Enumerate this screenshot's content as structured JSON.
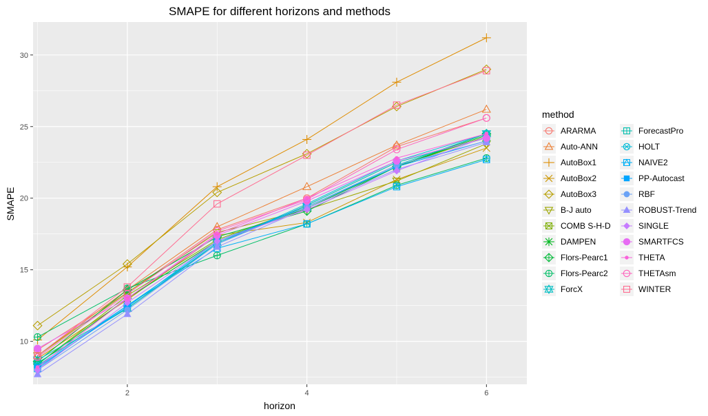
{
  "chart_data": {
    "type": "line",
    "title": "SMAPE for different horizons and methods",
    "xlabel": "horizon",
    "ylabel": "SMAPE",
    "xlim": [
      0.95,
      6.45
    ],
    "ylim": [
      7.0,
      32.3
    ],
    "x_ticks": [
      2,
      4,
      6
    ],
    "y_ticks": [
      10,
      15,
      20,
      25,
      30
    ],
    "grid": true,
    "legend_title": "method",
    "legend_position": "right",
    "x": [
      1,
      2,
      3,
      4,
      5,
      6
    ],
    "series": [
      {
        "name": "ARARMA",
        "color": "#F8766D",
        "shape": "circle-open",
        "values": [
          9.4,
          13.4,
          17.8,
          20.0,
          23.6,
          25.6
        ]
      },
      {
        "name": "Auto-ANN",
        "color": "#EC7F34",
        "shape": "triangle-open",
        "values": [
          9.0,
          13.6,
          18.0,
          20.8,
          23.7,
          26.2
        ]
      },
      {
        "name": "AutoBox1",
        "color": "#DE8C00",
        "shape": "plus",
        "values": [
          10.1,
          15.2,
          20.8,
          24.1,
          28.1,
          31.2
        ]
      },
      {
        "name": "AutoBox2",
        "color": "#CD9600",
        "shape": "cross",
        "values": [
          8.8,
          12.9,
          17.4,
          18.3,
          21.3,
          23.5
        ]
      },
      {
        "name": "AutoBox3",
        "color": "#B79F00",
        "shape": "diamond-open",
        "values": [
          11.1,
          15.4,
          20.4,
          23.1,
          26.4,
          29.0
        ]
      },
      {
        "name": "B-J auto",
        "color": "#9DA700",
        "shape": "triangle-down-open",
        "values": [
          9.0,
          13.4,
          17.6,
          19.2,
          21.2,
          23.8
        ]
      },
      {
        "name": "COMB S-H-D",
        "color": "#7CAE00",
        "shape": "square-cross",
        "values": [
          8.4,
          13.2,
          17.1,
          19.4,
          22.2,
          24.3
        ]
      },
      {
        "name": "DAMPEN",
        "color": "#00B81F",
        "shape": "asterisk",
        "values": [
          8.4,
          13.0,
          17.0,
          19.3,
          22.2,
          24.4
        ]
      },
      {
        "name": "Flors-Pearc1",
        "color": "#00BA38",
        "shape": "diamond-plus",
        "values": [
          8.6,
          13.6,
          17.3,
          19.1,
          22.2,
          24.5
        ]
      },
      {
        "name": "Flors-Pearc2",
        "color": "#00BE67",
        "shape": "circle-plus",
        "values": [
          10.3,
          13.7,
          16.0,
          18.2,
          20.9,
          22.8
        ]
      },
      {
        "name": "ForcX",
        "color": "#00BFC4",
        "shape": "star-david",
        "values": [
          8.7,
          12.3,
          16.9,
          19.4,
          22.3,
          24.5
        ]
      },
      {
        "name": "ForecastPro",
        "color": "#00BFAE",
        "shape": "square-plus",
        "values": [
          8.5,
          12.3,
          16.8,
          19.5,
          22.5,
          24.2
        ]
      },
      {
        "name": "HOLT",
        "color": "#00BCD8",
        "shape": "circle-x",
        "values": [
          8.3,
          12.5,
          16.8,
          19.6,
          22.6,
          24.5
        ]
      },
      {
        "name": "NAIVE2",
        "color": "#00B0F6",
        "shape": "square-triangle",
        "values": [
          8.1,
          12.5,
          16.5,
          18.2,
          20.8,
          22.7
        ]
      },
      {
        "name": "PP-Autocast",
        "color": "#00A5FF",
        "shape": "square-filled",
        "values": [
          8.2,
          12.4,
          17.0,
          19.4,
          22.2,
          24.0
        ]
      },
      {
        "name": "RBF",
        "color": "#6BA3F6",
        "shape": "circle-filled",
        "values": [
          8.0,
          12.2,
          16.8,
          19.4,
          22.3,
          24.0
        ]
      },
      {
        "name": "ROBUST-Trend",
        "color": "#9590FF",
        "shape": "triangle-filled",
        "values": [
          7.7,
          11.9,
          16.6,
          19.3,
          22.0,
          23.9
        ]
      },
      {
        "name": "SINGLE",
        "color": "#C77CFF",
        "shape": "diamond-filled",
        "values": [
          8.0,
          12.7,
          17.0,
          19.2,
          21.9,
          24.3
        ]
      },
      {
        "name": "SMARTFCS",
        "color": "#E76BF3",
        "shape": "circle-large-filled",
        "values": [
          9.5,
          13.0,
          17.4,
          19.8,
          22.6,
          24.2
        ]
      },
      {
        "name": "THETA",
        "color": "#FA62DB",
        "shape": "dot-filled",
        "values": [
          8.2,
          13.0,
          17.5,
          20.0,
          22.8,
          24.5
        ]
      },
      {
        "name": "THETAsm",
        "color": "#FF62BC",
        "shape": "circle-open",
        "values": [
          8.9,
          13.3,
          17.7,
          19.9,
          23.4,
          25.6
        ]
      },
      {
        "name": "WINTER",
        "color": "#FF6C91",
        "shape": "square-open",
        "values": [
          9.0,
          13.8,
          19.6,
          23.0,
          26.5,
          28.9
        ]
      }
    ]
  }
}
